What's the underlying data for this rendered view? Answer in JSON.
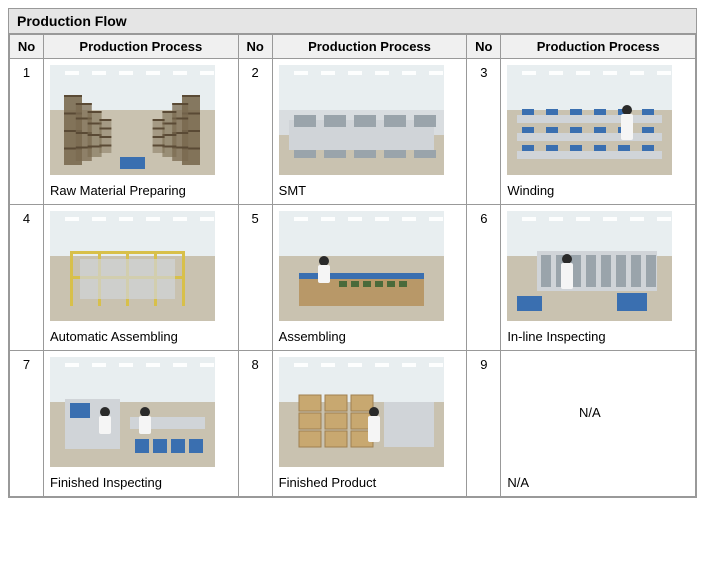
{
  "panel_title": "Production Flow",
  "headers": {
    "no": "No",
    "process": "Production Process"
  },
  "steps": [
    {
      "no": "1",
      "label": "Raw Material Preparing",
      "img_type": "warehouse"
    },
    {
      "no": "2",
      "label": "SMT",
      "img_type": "smt_line"
    },
    {
      "no": "3",
      "label": "Winding",
      "img_type": "workshop"
    },
    {
      "no": "4",
      "label": "Automatic Assembling",
      "img_type": "auto_assembly"
    },
    {
      "no": "5",
      "label": "Assembling",
      "img_type": "bench_worker"
    },
    {
      "no": "6",
      "label": "In-line Inspecting",
      "img_type": "inspect_line"
    },
    {
      "no": "7",
      "label": "Finished Inspecting",
      "img_type": "final_inspect"
    },
    {
      "no": "8",
      "label": "Finished Product",
      "img_type": "packaging"
    },
    {
      "no": "9",
      "label": "N/A",
      "img_type": "na",
      "na_text": "N/A"
    }
  ],
  "colors": {
    "ceiling": "#e8eef0",
    "floor": "#c9c2b0",
    "wall": "#d9dde0",
    "shelf": "#7a6a50",
    "blue_box": "#3a6fb0",
    "machine": "#d0d4d8",
    "machine_dark": "#9aa4ab",
    "fence": "#d8c04a",
    "carton": "#c8a870",
    "person_coat": "#f5f5f5",
    "person_hair": "#2a2a2a",
    "light": "#ffffff"
  }
}
